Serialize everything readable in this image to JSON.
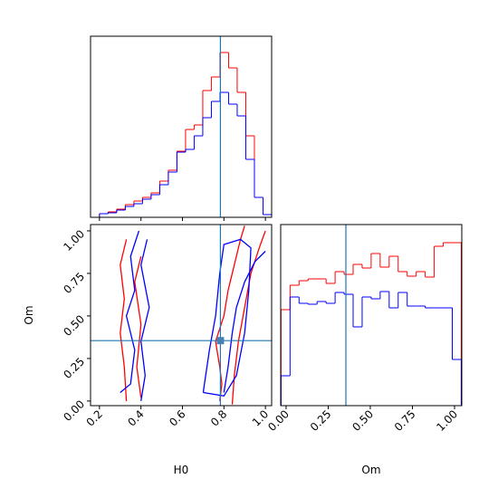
{
  "chart_data": [
    {
      "type": "histogram",
      "truth": 0.783,
      "bins": [
        0.2,
        0.2415,
        0.283,
        0.3245,
        0.366,
        0.4075,
        0.449,
        0.4905,
        0.532,
        0.5735,
        0.615,
        0.6565,
        0.698,
        0.7395,
        0.781,
        0.8225,
        0.864,
        0.9055,
        0.947,
        0.9885,
        1.03
      ],
      "series": [
        {
          "color": "#ff0000",
          "values": [
            4,
            6,
            9,
            14,
            18,
            22,
            27,
            40,
            52,
            73,
            97,
            102,
            140,
            155,
            182,
            165,
            138,
            90,
            22,
            3
          ]
        },
        {
          "color": "#0000ff",
          "values": [
            4,
            5,
            8,
            12,
            15,
            20,
            25,
            36,
            50,
            72,
            75,
            90,
            110,
            128,
            138,
            125,
            112,
            64,
            22,
            3
          ]
        }
      ],
      "xlim": [
        0.157,
        1.03
      ],
      "ylim": [
        0,
        200
      ],
      "xticks": [
        0.2,
        0.4,
        0.6,
        0.8,
        1.0
      ]
    },
    {
      "type": "contour",
      "xlabel": "H0",
      "ylabel": "Om",
      "truth": [
        0.783,
        0.355
      ],
      "series": [
        {
          "color": "#ff0000",
          "x": [
            0.78,
            0.79,
            0.78,
            0.76,
            0.8,
            0.82,
            0.85,
            0.88,
            0.9
          ],
          "y": [
            0.0,
            0.1,
            0.2,
            0.35,
            0.5,
            0.65,
            0.8,
            0.95,
            1.03
          ]
        },
        {
          "color": "#ff0000",
          "x": [
            0.84,
            0.85,
            0.87,
            0.9,
            0.93,
            0.97,
            1.0
          ],
          "y": [
            -0.02,
            0.15,
            0.35,
            0.55,
            0.75,
            0.9,
            1.0
          ]
        },
        {
          "color": "#ff0000",
          "x": [
            0.33,
            0.32,
            0.3,
            0.32,
            0.3,
            0.33
          ],
          "y": [
            0.0,
            0.2,
            0.4,
            0.6,
            0.8,
            0.95
          ]
        },
        {
          "color": "#ff0000",
          "x": [
            0.4,
            0.38,
            0.4,
            0.37,
            0.4
          ],
          "y": [
            0.02,
            0.2,
            0.45,
            0.7,
            0.85
          ]
        },
        {
          "color": "#0000ff",
          "x": [
            0.8,
            0.82,
            0.84,
            0.86,
            0.9,
            0.95,
            1.0
          ],
          "y": [
            0.05,
            0.2,
            0.4,
            0.55,
            0.7,
            0.82,
            0.88
          ]
        },
        {
          "color": "#0000ff",
          "x": [
            0.7,
            0.8,
            0.86,
            0.9,
            0.92,
            0.93,
            0.88,
            0.8,
            0.78,
            0.76,
            0.73,
            0.7
          ],
          "y": [
            0.05,
            0.03,
            0.15,
            0.4,
            0.65,
            0.9,
            0.95,
            0.92,
            0.75,
            0.5,
            0.3,
            0.05
          ]
        },
        {
          "color": "#0000ff",
          "x": [
            0.3,
            0.35,
            0.37,
            0.33,
            0.37,
            0.35,
            0.39
          ],
          "y": [
            0.05,
            0.1,
            0.3,
            0.5,
            0.65,
            0.85,
            1.0
          ]
        },
        {
          "color": "#0000ff",
          "x": [
            0.4,
            0.42,
            0.4,
            0.44,
            0.4,
            0.43
          ],
          "y": [
            0.0,
            0.15,
            0.35,
            0.55,
            0.8,
            0.95
          ]
        }
      ],
      "xlim": [
        0.157,
        1.03
      ],
      "ylim": [
        -0.027,
        1.037
      ],
      "xticks": [
        0.2,
        0.4,
        0.6,
        0.8,
        {
          "value": 1,
          "label": "1.0"
        }
      ],
      "yticks": [
        {
          "value": 0,
          "label": "0.00"
        },
        {
          "value": 0.25,
          "label": "0.25"
        },
        {
          "value": 0.5,
          "label": "0.50"
        },
        {
          "value": 0.75,
          "label": "0.75"
        },
        {
          "value": 1,
          "label": "1.00"
        }
      ]
    },
    {
      "type": "histogram",
      "xlabel": "Om",
      "truth": 0.355,
      "bins": [
        -0.03,
        0.0235,
        0.077,
        0.1305,
        0.184,
        0.2375,
        0.291,
        0.3445,
        0.398,
        0.4515,
        0.505,
        0.5585,
        0.612,
        0.6655,
        0.719,
        0.7725,
        0.826,
        0.8795,
        0.933,
        0.9865,
        1.04
      ],
      "series": [
        {
          "color": "#ff0000",
          "values": [
            106,
            133,
            138,
            140,
            140,
            135,
            148,
            145,
            156,
            152,
            168,
            153,
            165,
            148,
            143,
            148,
            142,
            176,
            180,
            180
          ]
        },
        {
          "color": "#0000ff",
          "values": [
            33,
            120,
            113,
            112,
            115,
            113,
            125,
            123,
            87,
            120,
            118,
            126,
            108,
            125,
            110,
            110,
            108,
            108,
            108,
            51
          ]
        }
      ],
      "xlim": [
        -0.032,
        1.043
      ],
      "ylim": [
        0,
        200
      ],
      "xticks": [
        {
          "value": 0,
          "label": "0.00"
        },
        {
          "value": 0.25,
          "label": "0.25"
        },
        {
          "value": 0.5,
          "label": "0.50"
        },
        {
          "value": 0.75,
          "label": "0.75"
        },
        {
          "value": 1,
          "label": "1.00"
        }
      ]
    }
  ]
}
